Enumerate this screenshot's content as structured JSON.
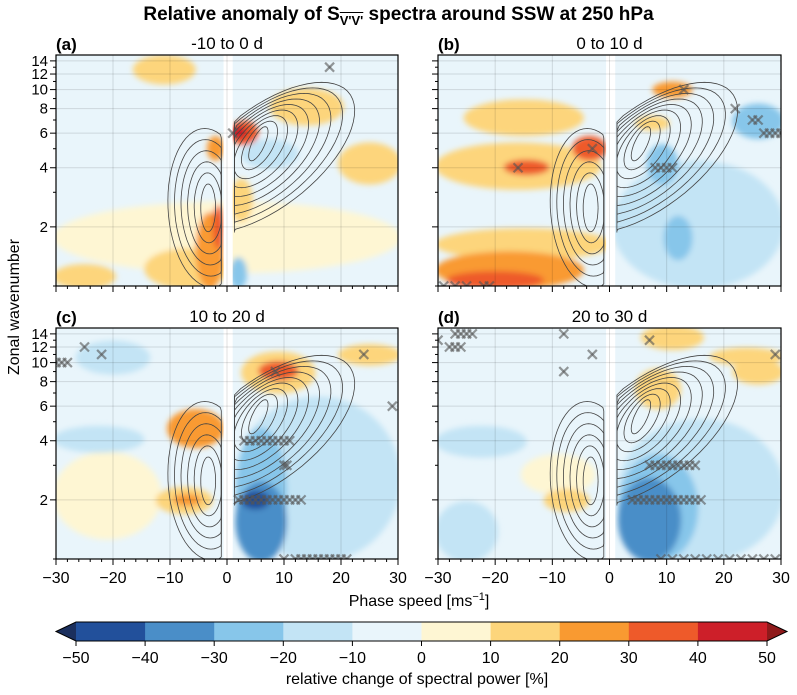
{
  "chart_data": {
    "type": "heatmap",
    "title_prefix": "Relative anomaly of S",
    "title_subscript": "V'V'",
    "title_suffix": " spectra around SSW at 250 hPa",
    "xlabel": "Phase speed [ms",
    "xlabel_sup": "−1",
    "xlabel_end": "]",
    "ylabel": "Zonal wavenumber",
    "xlim": [
      -30,
      30
    ],
    "ylim": [
      1,
      15
    ],
    "y_scale": "log",
    "grid": true,
    "x_ticks": [
      "−30",
      "−20",
      "−10",
      "0",
      "10",
      "20",
      "30"
    ],
    "x_tick_values": [
      -30,
      -20,
      -10,
      0,
      10,
      20,
      30
    ],
    "y_ticks": [
      "2",
      "4",
      "6",
      "8",
      "10",
      "12",
      "14"
    ],
    "y_tick_values": [
      2,
      4,
      6,
      8,
      10,
      12,
      14
    ],
    "colorbar": {
      "label": "relative change of spectral power [%]",
      "levels": [
        -50,
        -40,
        -30,
        -20,
        -10,
        0,
        10,
        20,
        30,
        40,
        50
      ],
      "tick_labels": [
        "−50",
        "−40",
        "−30",
        "−20",
        "−10",
        "0",
        "10",
        "20",
        "30",
        "40",
        "50"
      ],
      "colors": [
        "#22509b",
        "#4a8ec8",
        "#87c6ea",
        "#c3e4f5",
        "#e9f5fb",
        "#fef6d3",
        "#fdd57b",
        "#f99a31",
        "#ee5a2a",
        "#cd1f29"
      ],
      "extend_low_color": "#1b2f5d",
      "extend_high_color": "#8f1a1b",
      "extend": "both"
    },
    "panels": [
      {
        "letter": "(a)",
        "title": "-10 to 0 d",
        "background_value": -5,
        "regions": [
          {
            "c": [
              -30,
              -20
            ],
            "k": [
              1,
              1.25
            ],
            "v": 15
          },
          {
            "c": [
              -30,
              30
            ],
            "k": [
              1.2,
              2.6
            ],
            "v": 5
          },
          {
            "c": [
              -14,
              0
            ],
            "k": [
              1,
              1.5
            ],
            "v": 15
          },
          {
            "c": [
              -5,
              -1
            ],
            "k": [
              1,
              2.3
            ],
            "v": 25
          },
          {
            "c": [
              -2,
              -1
            ],
            "k": [
              1.6,
              2.5
            ],
            "v": 35
          },
          {
            "c": [
              -3,
              -1
            ],
            "k": [
              4.5,
              5.6
            ],
            "v": 22
          },
          {
            "c": [
              1,
              4
            ],
            "k": [
              2.2,
              3.4
            ],
            "v": 15
          },
          {
            "c": [
              -16,
              -6
            ],
            "k": [
              11,
              14.5
            ],
            "v": 15
          },
          {
            "c": [
              8,
              20
            ],
            "k": [
              6.8,
              9.8
            ],
            "v": 15
          },
          {
            "c": [
              20,
              30
            ],
            "k": [
              3.4,
              5.2
            ],
            "v": 15
          },
          {
            "c": [
              3,
              12
            ],
            "k": [
              4.1,
              5.4
            ],
            "v": -15
          },
          {
            "c": [
              1,
              3
            ],
            "k": [
              1,
              1.35
            ],
            "v": -25
          },
          {
            "c": [
              1,
              5
            ],
            "k": [
              5.4,
              6.7
            ],
            "v": 32
          },
          {
            "c": [
              1,
              3
            ],
            "k": [
              5.8,
              6.3
            ],
            "v": 45
          }
        ],
        "crosses": [
          [
            18,
            13
          ],
          [
            1,
            6
          ]
        ]
      },
      {
        "letter": "(b)",
        "title": "0 to 10 d",
        "background_value": -5,
        "regions": [
          {
            "c": [
              -30,
              0
            ],
            "k": [
              1.4,
              1.9
            ],
            "v": 15
          },
          {
            "c": [
              -30,
              -5
            ],
            "k": [
              1,
              1.45
            ],
            "v": 25
          },
          {
            "c": [
              -28,
              -12
            ],
            "k": [
              1,
              1.15
            ],
            "v": 35
          },
          {
            "c": [
              -30,
              -2
            ],
            "k": [
              3.2,
              5.2
            ],
            "v": 15
          },
          {
            "c": [
              -25,
              -5
            ],
            "k": [
              6,
              8.6
            ],
            "v": 12
          },
          {
            "c": [
              -18,
              -11
            ],
            "k": [
              3.8,
              4.25
            ],
            "v": 32
          },
          {
            "c": [
              -6,
              -1
            ],
            "k": [
              4.5,
              5.6
            ],
            "v": 32
          },
          {
            "c": [
              1,
              30
            ],
            "k": [
              1,
              4.2
            ],
            "v": -15
          },
          {
            "c": [
              7,
              11.5
            ],
            "k": [
              3.4,
              5.1
            ],
            "v": -25
          },
          {
            "c": [
              10,
              14
            ],
            "k": [
              1.4,
              2.2
            ],
            "v": -25
          },
          {
            "c": [
              22,
              30
            ],
            "k": [
              5.8,
              8.2
            ],
            "v": -22
          },
          {
            "c": [
              5,
              10
            ],
            "k": [
              6.4,
              7.1
            ],
            "v": 15
          },
          {
            "c": [
              8,
              14
            ],
            "k": [
              9.4,
              10.6
            ],
            "v": 25
          }
        ],
        "crosses": [
          [
            -16,
            4
          ],
          [
            -3,
            5
          ],
          [
            8,
            4
          ],
          [
            9,
            4
          ],
          [
            10,
            4
          ],
          [
            11,
            4
          ],
          [
            13,
            10
          ],
          [
            22,
            8
          ],
          [
            25,
            7
          ],
          [
            26,
            7
          ],
          [
            27,
            6
          ],
          [
            28,
            6
          ],
          [
            29,
            6
          ],
          [
            30,
            6
          ],
          [
            -29,
            1
          ],
          [
            -27,
            1
          ],
          [
            -25,
            1
          ],
          [
            -22,
            1
          ],
          [
            -21,
            1
          ]
        ]
      },
      {
        "letter": "(c)",
        "title": "10 to 20 d",
        "background_value": -5,
        "regions": [
          {
            "c": [
              -30,
              -12
            ],
            "k": [
              1.3,
              3.4
            ],
            "v": 5
          },
          {
            "c": [
              -30,
              -15
            ],
            "k": [
              3.6,
              4.6
            ],
            "v": -15
          },
          {
            "c": [
              -26,
              -14
            ],
            "k": [
              9,
              12.5
            ],
            "v": -15
          },
          {
            "c": [
              2,
              30
            ],
            "k": [
              1,
              6.5
            ],
            "v": -15
          },
          {
            "c": [
              2,
              10
            ],
            "k": [
              1,
              4.5
            ],
            "v": -25
          },
          {
            "c": [
              2,
              10
            ],
            "k": [
              1,
              2.4
            ],
            "v": -35
          },
          {
            "c": [
              3,
              7
            ],
            "k": [
              1.85,
              2.15
            ],
            "v": -45
          },
          {
            "c": [
              -10,
              -1
            ],
            "k": [
              3.8,
              5.6
            ],
            "v": 22
          },
          {
            "c": [
              -12,
              -3
            ],
            "k": [
              1.75,
              2.25
            ],
            "v": 15
          },
          {
            "c": [
              -9,
              -5
            ],
            "k": [
              1.93,
              2.07
            ],
            "v": 25
          },
          {
            "c": [
              3,
              15
            ],
            "k": [
              7.2,
              11
            ],
            "v": 15
          },
          {
            "c": [
              6,
              12
            ],
            "k": [
              8.4,
              9.8
            ],
            "v": 32
          },
          {
            "c": [
              20,
              30
            ],
            "k": [
              10,
              12
            ],
            "v": 15
          }
        ],
        "crosses": [
          [
            -30,
            10
          ],
          [
            -29,
            10
          ],
          [
            -28,
            10
          ],
          [
            -25,
            12
          ],
          [
            -22,
            11
          ],
          [
            24,
            11
          ],
          [
            29,
            6
          ],
          [
            8.5,
            9
          ],
          [
            3,
            4
          ],
          [
            4,
            4
          ],
          [
            5,
            4
          ],
          [
            6,
            4
          ],
          [
            7,
            4
          ],
          [
            8,
            4
          ],
          [
            9,
            4
          ],
          [
            10,
            4
          ],
          [
            11,
            4
          ],
          [
            10,
            3
          ],
          [
            10.5,
            3
          ],
          [
            2,
            2
          ],
          [
            3,
            2
          ],
          [
            4,
            2
          ],
          [
            5,
            2
          ],
          [
            6,
            2
          ],
          [
            7,
            2
          ],
          [
            8,
            2
          ],
          [
            9,
            2
          ],
          [
            10,
            2
          ],
          [
            11,
            2
          ],
          [
            12,
            2
          ],
          [
            13,
            2
          ],
          [
            10,
            1
          ],
          [
            12,
            1
          ],
          [
            13,
            1
          ],
          [
            14,
            1
          ],
          [
            15,
            1
          ],
          [
            16,
            1
          ],
          [
            17,
            1
          ],
          [
            18,
            1
          ],
          [
            19,
            1
          ],
          [
            20,
            1
          ],
          [
            21,
            1
          ]
        ]
      },
      {
        "letter": "(d)",
        "title": "20 to 30 d",
        "background_value": -5,
        "regions": [
          {
            "c": [
              -30,
              -20
            ],
            "k": [
              1,
              1.9
            ],
            "v": -15
          },
          {
            "c": [
              -30,
              -15
            ],
            "k": [
              3.4,
              4.6
            ],
            "v": -15
          },
          {
            "c": [
              -15,
              -3
            ],
            "k": [
              2.2,
              3.3
            ],
            "v": 5
          },
          {
            "c": [
              -11,
              -4
            ],
            "k": [
              1.8,
              2.2
            ],
            "v": 15
          },
          {
            "c": [
              2,
              30
            ],
            "k": [
              1,
              5
            ],
            "v": -15
          },
          {
            "c": [
              2,
              15
            ],
            "k": [
              1,
              3.3
            ],
            "v": -25
          },
          {
            "c": [
              2,
              12
            ],
            "k": [
              1,
              2.5
            ],
            "v": -35
          },
          {
            "c": [
              5,
              12
            ],
            "k": [
              6,
              9
            ],
            "v": 15
          },
          {
            "c": [
              22,
              30
            ],
            "k": [
              8,
              10
            ],
            "v": 15
          },
          {
            "c": [
              18,
              30
            ],
            "k": [
              10,
              11.5
            ],
            "v": 15
          },
          {
            "c": [
              6,
              16
            ],
            "k": [
              12,
              15
            ],
            "v": 15
          }
        ],
        "crosses": [
          [
            -30,
            13
          ],
          [
            -27,
            14
          ],
          [
            -26,
            14
          ],
          [
            -25,
            14
          ],
          [
            -24,
            14
          ],
          [
            -28,
            12
          ],
          [
            -27,
            12
          ],
          [
            -26,
            12
          ],
          [
            -8,
            14
          ],
          [
            -3,
            11
          ],
          [
            -8,
            9
          ],
          [
            7,
            13
          ],
          [
            29,
            11
          ],
          [
            7,
            3
          ],
          [
            8,
            3
          ],
          [
            9,
            3
          ],
          [
            10,
            3
          ],
          [
            11,
            3
          ],
          [
            12,
            3
          ],
          [
            13,
            3
          ],
          [
            14,
            3
          ],
          [
            15,
            3
          ],
          [
            4,
            2
          ],
          [
            5,
            2
          ],
          [
            6,
            2
          ],
          [
            7,
            2
          ],
          [
            8,
            2
          ],
          [
            9,
            2
          ],
          [
            10,
            2
          ],
          [
            11,
            2
          ],
          [
            12,
            2
          ],
          [
            13,
            2
          ],
          [
            14,
            2
          ],
          [
            15,
            2
          ],
          [
            16,
            2
          ],
          [
            9,
            1
          ],
          [
            11,
            1
          ],
          [
            13,
            1
          ],
          [
            15,
            1
          ],
          [
            17,
            1
          ],
          [
            19,
            1
          ],
          [
            21,
            1
          ],
          [
            23,
            1
          ],
          [
            25,
            1
          ],
          [
            27,
            1
          ],
          [
            29,
            1
          ]
        ]
      }
    ]
  }
}
